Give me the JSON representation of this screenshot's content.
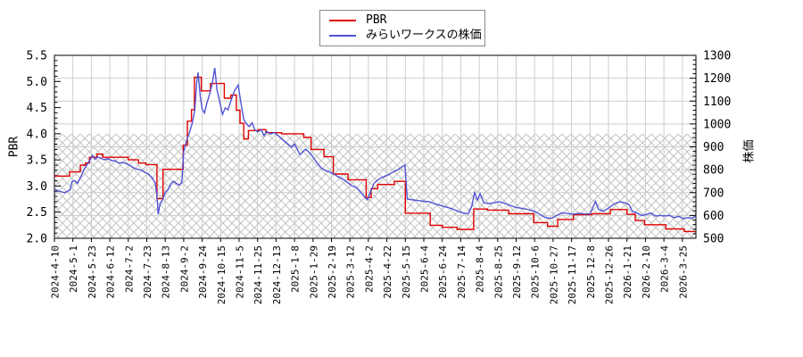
{
  "chart_data": {
    "type": "line",
    "title": "",
    "grid": true,
    "legend_position": "top-center-outside",
    "background": "#ffffff",
    "frame_color": "#000000",
    "grid_color": "#cdcdcd",
    "hatch_band": {
      "axis": "left",
      "from": 2.0,
      "to": 4.0,
      "pattern": "crosshatch",
      "color": "#c3c3c3"
    },
    "x_axis": {
      "unit": "date",
      "tick_labels": [
        "2024-4-10",
        "2024-5-1",
        "2024-5-23",
        "2024-6-12",
        "2024-7-2",
        "2024-7-23",
        "2024-8-13",
        "2024-9-2",
        "2024-9-24",
        "2024-10-15",
        "2024-11-5",
        "2024-11-25",
        "2024-12-13",
        "2025-1-8",
        "2025-1-29",
        "2025-2-19",
        "2025-3-12",
        "2025-4-2",
        "2025-4-22",
        "2025-5-15",
        "2025-6-4",
        "2025-6-24",
        "2025-7-14",
        "2025-8-4",
        "2025-8-25",
        "2025-9-12",
        "2025-10-6",
        "2025-10-27",
        "2025-11-17",
        "2025-12-8",
        "2025-12-26",
        "2026-1-21",
        "2026-2-10",
        "2026-3-4",
        "2026-3-25"
      ],
      "x_max_tick_units": 34.7
    },
    "y_left": {
      "label": "PBR",
      "min": 2.0,
      "max": 5.5,
      "tick_step": 0.5,
      "minor_step": 0.1,
      "ticks": [
        "2.0",
        "2.5",
        "3.0",
        "3.5",
        "4.0",
        "4.5",
        "5.0",
        "5.5"
      ]
    },
    "y_right": {
      "label": "株価",
      "min": 500,
      "max": 1300,
      "tick_step": 100,
      "minor_step": 20,
      "ticks": [
        "500",
        "600",
        "700",
        "800",
        "900",
        "1000",
        "1100",
        "1200",
        "1300"
      ]
    },
    "series": [
      {
        "name": "PBR",
        "axis": "left",
        "color": "#e00000",
        "style": "step",
        "points": [
          [
            0,
            3.19
          ],
          [
            0.82,
            3.27
          ],
          [
            1.4,
            3.4
          ],
          [
            1.68,
            3.44
          ],
          [
            1.9,
            3.55
          ],
          [
            2.3,
            3.61
          ],
          [
            2.62,
            3.55
          ],
          [
            4.0,
            3.5
          ],
          [
            4.55,
            3.44
          ],
          [
            4.95,
            3.41
          ],
          [
            5.55,
            2.76
          ],
          [
            5.88,
            3.32
          ],
          [
            6.97,
            3.78
          ],
          [
            7.2,
            4.24
          ],
          [
            7.42,
            4.46
          ],
          [
            7.58,
            5.08
          ],
          [
            7.95,
            4.82
          ],
          [
            8.45,
            4.96
          ],
          [
            9.2,
            4.68
          ],
          [
            9.55,
            4.74
          ],
          [
            9.85,
            4.45
          ],
          [
            10.05,
            4.2
          ],
          [
            10.25,
            3.9
          ],
          [
            10.5,
            4.06
          ],
          [
            11.05,
            4.08
          ],
          [
            11.45,
            4.02
          ],
          [
            12.3,
            4.0
          ],
          [
            13.5,
            3.93
          ],
          [
            13.9,
            3.7
          ],
          [
            14.6,
            3.56
          ],
          [
            15.1,
            3.23
          ],
          [
            15.9,
            3.12
          ],
          [
            16.88,
            2.78
          ],
          [
            17.15,
            2.95
          ],
          [
            17.5,
            3.03
          ],
          [
            18.4,
            3.09
          ],
          [
            19.0,
            2.48
          ],
          [
            20.35,
            2.25
          ],
          [
            21.0,
            2.21
          ],
          [
            21.8,
            2.17
          ],
          [
            22.7,
            2.56
          ],
          [
            23.45,
            2.54
          ],
          [
            24.6,
            2.47
          ],
          [
            25.95,
            2.3
          ],
          [
            26.7,
            2.23
          ],
          [
            27.25,
            2.36
          ],
          [
            28.1,
            2.45
          ],
          [
            29.1,
            2.47
          ],
          [
            30.1,
            2.55
          ],
          [
            31.0,
            2.46
          ],
          [
            31.45,
            2.34
          ],
          [
            31.95,
            2.26
          ],
          [
            33.1,
            2.18
          ],
          [
            34.1,
            2.13
          ],
          [
            34.7,
            2.13
          ]
        ]
      },
      {
        "name": "みらいワークスの株価",
        "axis": "right",
        "color": "#5052d5",
        "style": "line",
        "points": [
          [
            0,
            715
          ],
          [
            0.2,
            708
          ],
          [
            0.4,
            703
          ],
          [
            0.55,
            700
          ],
          [
            0.7,
            705
          ],
          [
            0.85,
            712
          ],
          [
            0.95,
            748
          ],
          [
            1.1,
            752
          ],
          [
            1.25,
            740
          ],
          [
            1.45,
            772
          ],
          [
            1.6,
            800
          ],
          [
            1.75,
            820
          ],
          [
            1.9,
            838
          ],
          [
            2.05,
            862
          ],
          [
            2.2,
            845
          ],
          [
            2.35,
            856
          ],
          [
            2.5,
            850
          ],
          [
            2.7,
            843
          ],
          [
            2.9,
            848
          ],
          [
            3.1,
            840
          ],
          [
            3.3,
            838
          ],
          [
            3.5,
            828
          ],
          [
            3.7,
            832
          ],
          [
            3.9,
            826
          ],
          [
            4.1,
            818
          ],
          [
            4.3,
            808
          ],
          [
            4.5,
            802
          ],
          [
            4.7,
            798
          ],
          [
            4.9,
            788
          ],
          [
            5.1,
            780
          ],
          [
            5.3,
            764
          ],
          [
            5.45,
            742
          ],
          [
            5.55,
            690
          ],
          [
            5.62,
            605
          ],
          [
            5.72,
            652
          ],
          [
            5.85,
            668
          ],
          [
            6.0,
            700
          ],
          [
            6.15,
            712
          ],
          [
            6.3,
            738
          ],
          [
            6.45,
            750
          ],
          [
            6.6,
            740
          ],
          [
            6.75,
            732
          ],
          [
            6.9,
            745
          ],
          [
            7.0,
            880
          ],
          [
            7.15,
            925
          ],
          [
            7.3,
            960
          ],
          [
            7.45,
            1000
          ],
          [
            7.6,
            1060
          ],
          [
            7.7,
            1180
          ],
          [
            7.78,
            1225
          ],
          [
            7.9,
            1120
          ],
          [
            8.0,
            1065
          ],
          [
            8.12,
            1048
          ],
          [
            8.25,
            1090
          ],
          [
            8.4,
            1130
          ],
          [
            8.55,
            1180
          ],
          [
            8.68,
            1245
          ],
          [
            8.8,
            1150
          ],
          [
            8.95,
            1095
          ],
          [
            9.1,
            1042
          ],
          [
            9.25,
            1070
          ],
          [
            9.4,
            1062
          ],
          [
            9.55,
            1100
          ],
          [
            9.75,
            1145
          ],
          [
            9.95,
            1170
          ],
          [
            10.1,
            1090
          ],
          [
            10.25,
            1020
          ],
          [
            10.4,
            1000
          ],
          [
            10.55,
            988
          ],
          [
            10.7,
            1005
          ],
          [
            10.85,
            975
          ],
          [
            11.0,
            965
          ],
          [
            11.2,
            975
          ],
          [
            11.35,
            948
          ],
          [
            11.5,
            968
          ],
          [
            11.7,
            956
          ],
          [
            11.9,
            962
          ],
          [
            12.1,
            950
          ],
          [
            12.35,
            932
          ],
          [
            12.6,
            915
          ],
          [
            12.85,
            898
          ],
          [
            13.0,
            912
          ],
          [
            13.3,
            866
          ],
          [
            13.6,
            890
          ],
          [
            13.8,
            875
          ],
          [
            14.0,
            855
          ],
          [
            14.2,
            832
          ],
          [
            14.45,
            808
          ],
          [
            14.7,
            795
          ],
          [
            14.9,
            790
          ],
          [
            15.1,
            782
          ],
          [
            15.35,
            770
          ],
          [
            15.6,
            760
          ],
          [
            15.85,
            745
          ],
          [
            16.1,
            730
          ],
          [
            16.35,
            722
          ],
          [
            16.6,
            700
          ],
          [
            16.8,
            680
          ],
          [
            16.95,
            668
          ],
          [
            17.1,
            700
          ],
          [
            17.3,
            740
          ],
          [
            17.5,
            755
          ],
          [
            17.7,
            765
          ],
          [
            17.9,
            772
          ],
          [
            18.1,
            778
          ],
          [
            18.35,
            790
          ],
          [
            18.6,
            800
          ],
          [
            18.85,
            815
          ],
          [
            18.98,
            820
          ],
          [
            19.1,
            672
          ],
          [
            19.4,
            668
          ],
          [
            19.7,
            665
          ],
          [
            20.0,
            662
          ],
          [
            20.3,
            660
          ],
          [
            20.6,
            650
          ],
          [
            20.9,
            644
          ],
          [
            21.2,
            637
          ],
          [
            21.5,
            630
          ],
          [
            21.8,
            620
          ],
          [
            22.1,
            612
          ],
          [
            22.4,
            606
          ],
          [
            22.6,
            640
          ],
          [
            22.75,
            700
          ],
          [
            22.9,
            668
          ],
          [
            23.05,
            695
          ],
          [
            23.25,
            655
          ],
          [
            23.5,
            652
          ],
          [
            23.8,
            655
          ],
          [
            24.1,
            660
          ],
          [
            24.4,
            652
          ],
          [
            24.7,
            643
          ],
          [
            25.0,
            635
          ],
          [
            25.4,
            630
          ],
          [
            25.7,
            625
          ],
          [
            26.0,
            618
          ],
          [
            26.3,
            604
          ],
          [
            26.6,
            590
          ],
          [
            26.9,
            587
          ],
          [
            27.2,
            600
          ],
          [
            27.5,
            612
          ],
          [
            27.8,
            608
          ],
          [
            28.1,
            605
          ],
          [
            28.4,
            610
          ],
          [
            28.7,
            606
          ],
          [
            29.0,
            607
          ],
          [
            29.3,
            662
          ],
          [
            29.45,
            628
          ],
          [
            29.7,
            618
          ],
          [
            30.0,
            632
          ],
          [
            30.3,
            650
          ],
          [
            30.6,
            660
          ],
          [
            30.9,
            655
          ],
          [
            31.1,
            648
          ],
          [
            31.3,
            618
          ],
          [
            31.55,
            610
          ],
          [
            31.8,
            600
          ],
          [
            32.05,
            604
          ],
          [
            32.3,
            610
          ],
          [
            32.55,
            597
          ],
          [
            32.8,
            600
          ],
          [
            33.05,
            598
          ],
          [
            33.3,
            600
          ],
          [
            33.55,
            590
          ],
          [
            33.8,
            596
          ],
          [
            34.05,
            586
          ],
          [
            34.3,
            590
          ],
          [
            34.55,
            588
          ],
          [
            34.7,
            597
          ]
        ]
      }
    ]
  }
}
